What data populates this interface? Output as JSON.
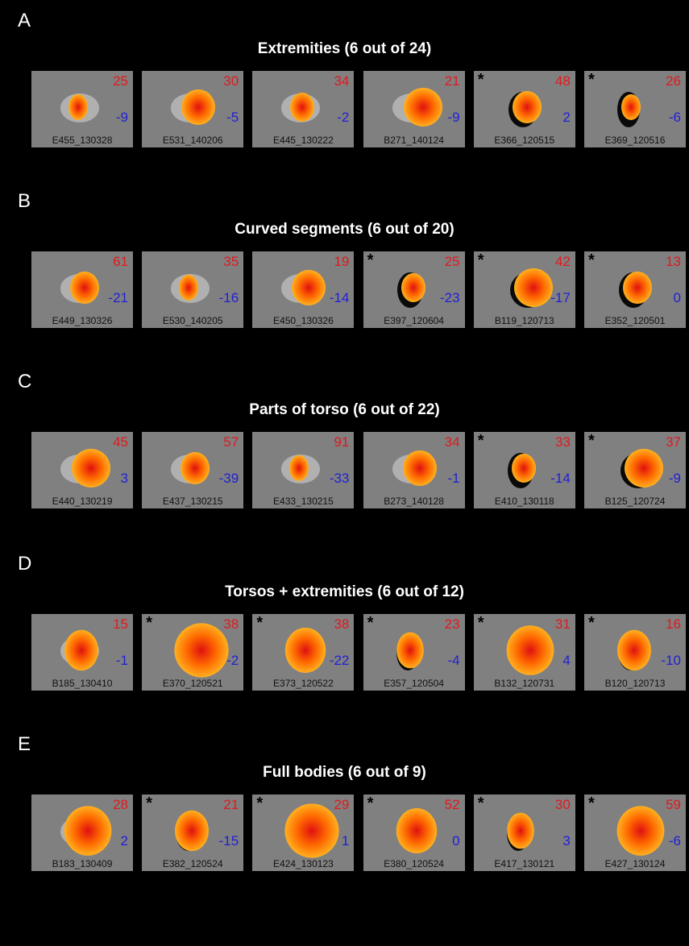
{
  "panels": [
    {
      "letter": "A",
      "title": "Extremities (6 out of 24)",
      "tiles": [
        {
          "top": 25,
          "bottom": -9,
          "id": "E455_130328"
        },
        {
          "top": 30,
          "bottom": -5,
          "id": "E531_140206"
        },
        {
          "top": 34,
          "bottom": -2,
          "id": "E445_130222"
        },
        {
          "top": 21,
          "bottom": -9,
          "id": "B271_140124"
        },
        {
          "marker": "*",
          "top": 48,
          "bottom": 2,
          "id": "E366_120515"
        },
        {
          "marker": "*",
          "top": 26,
          "bottom": -6,
          "id": "E369_120516"
        }
      ]
    },
    {
      "letter": "B",
      "title": "Curved segments (6 out of 20)",
      "tiles": [
        {
          "top": 61,
          "bottom": -21,
          "id": "E449_130326"
        },
        {
          "top": 35,
          "bottom": -16,
          "id": "E530_140205"
        },
        {
          "top": 19,
          "bottom": -14,
          "id": "E450_130326"
        },
        {
          "marker": "*",
          "top": 25,
          "bottom": -23,
          "id": "E397_120604"
        },
        {
          "marker": "*",
          "top": 42,
          "bottom": -17,
          "id": "B119_120713"
        },
        {
          "marker": "*",
          "top": 13,
          "bottom": 0,
          "id": "E352_120501"
        }
      ]
    },
    {
      "letter": "C",
      "title": "Parts of torso (6 out of 22)",
      "tiles": [
        {
          "top": 45,
          "bottom": 3,
          "id": "E440_130219"
        },
        {
          "top": 57,
          "bottom": -39,
          "id": "E437_130215"
        },
        {
          "top": 91,
          "bottom": -33,
          "id": "E433_130215"
        },
        {
          "top": 34,
          "bottom": -1,
          "id": "B273_140128"
        },
        {
          "marker": "*",
          "top": 33,
          "bottom": -14,
          "id": "E410_130118"
        },
        {
          "marker": "*",
          "top": 37,
          "bottom": -9,
          "id": "B125_120724"
        }
      ]
    },
    {
      "letter": "D",
      "title": "Torsos + extremities (6 out of 12)",
      "tiles": [
        {
          "top": 15,
          "bottom": -1,
          "id": "B185_130410"
        },
        {
          "marker": "*",
          "top": 38,
          "bottom": -2,
          "id": "E370_120521"
        },
        {
          "marker": "*",
          "top": 38,
          "bottom": -22,
          "id": "E373_120522"
        },
        {
          "marker": "*",
          "top": 23,
          "bottom": -4,
          "id": "E357_120504"
        },
        {
          "marker": "*",
          "top": 31,
          "bottom": 4,
          "id": "B132_120731"
        },
        {
          "marker": "*",
          "top": 16,
          "bottom": -10,
          "id": "B120_120713"
        }
      ]
    },
    {
      "letter": "E",
      "title": "Full bodies (6 out of 9)",
      "tiles": [
        {
          "top": 28,
          "bottom": 2,
          "id": "B183_130409"
        },
        {
          "marker": "*",
          "top": 21,
          "bottom": -15,
          "id": "E382_120524"
        },
        {
          "marker": "*",
          "top": 29,
          "bottom": 1,
          "id": "E424_130123"
        },
        {
          "marker": "*",
          "top": 52,
          "bottom": 0,
          "id": "E380_120524"
        },
        {
          "marker": "*",
          "top": 30,
          "bottom": 3,
          "id": "E417_130121"
        },
        {
          "marker": "*",
          "top": 59,
          "bottom": -6,
          "id": "E427_130124"
        }
      ]
    }
  ]
}
